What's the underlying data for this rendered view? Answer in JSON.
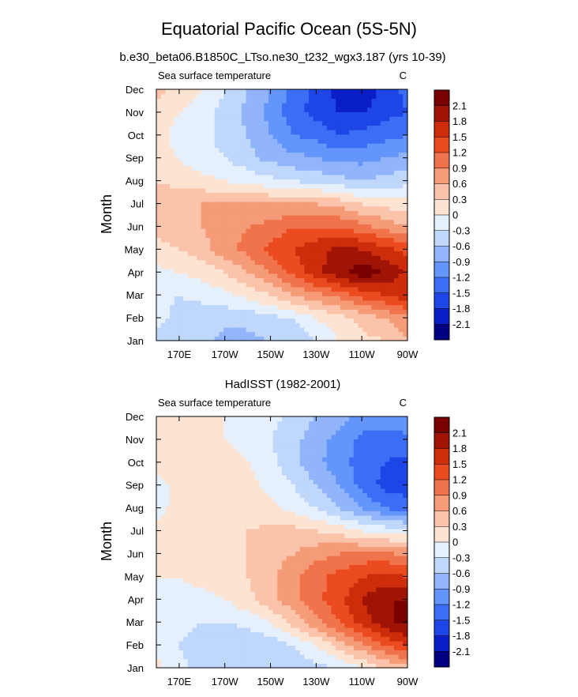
{
  "figure": {
    "title": "Equatorial Pacific Ocean (5S-5N)",
    "palette": [
      "#000080",
      "#0a1ec8",
      "#1e46e6",
      "#3c6ef5",
      "#6495fa",
      "#91b4fa",
      "#bed7fa",
      "#e6f0fc",
      "#fde3d2",
      "#fac3aa",
      "#f59b78",
      "#f0734b",
      "#eb4b1e",
      "#cd2d0a",
      "#a01405",
      "#780000"
    ]
  },
  "chart_data": [
    {
      "type": "heatmap",
      "title": "b.e30_beta06.B1850C_LTso.ne30_t232_wgx3.187 (yrs 10-39)",
      "left_string": "Sea surface temperature",
      "right_string": "C",
      "xlabel": "",
      "ylabel": "Month",
      "x": [
        160,
        170,
        180,
        190,
        200,
        210,
        220,
        230,
        240,
        250,
        260,
        270
      ],
      "xlim": [
        160,
        270
      ],
      "x_ticks": [
        170,
        190,
        210,
        230,
        250,
        270
      ],
      "x_tick_labels": [
        "170E",
        "170W",
        "150W",
        "130W",
        "110W",
        "90W"
      ],
      "y": [
        1,
        2,
        3,
        4,
        5,
        6,
        7,
        8,
        9,
        10,
        11,
        12
      ],
      "ylim": [
        1,
        12
      ],
      "y_tick_labels": [
        "Jan",
        "Feb",
        "Mar",
        "Apr",
        "May",
        "Jun",
        "Jul",
        "Aug",
        "Sep",
        "Oct",
        "Nov",
        "Dec"
      ],
      "contour_levels": [
        -2.1,
        -1.8,
        -1.5,
        -1.2,
        -0.9,
        -0.6,
        -0.3,
        0,
        0.3,
        0.6,
        0.9,
        1.2,
        1.5,
        1.8,
        2.1
      ],
      "colorbar_labels": [
        "2.1",
        "1.8",
        "1.5",
        "1.2",
        "0.9",
        "0.6",
        "0.3",
        "0",
        "-0.3",
        "-0.6",
        "-0.9",
        "-1.2",
        "-1.5",
        "-1.8",
        "-2.1"
      ],
      "z": [
        [
          -0.4,
          -0.5,
          -0.5,
          -0.7,
          -0.7,
          -0.6,
          -0.5,
          -0.3,
          0.0,
          0.2,
          0.3,
          0.6
        ],
        [
          -0.2,
          -0.4,
          -0.5,
          -0.5,
          -0.5,
          -0.4,
          -0.3,
          0.0,
          0.2,
          0.4,
          0.6,
          0.8
        ],
        [
          -0.2,
          -0.3,
          -0.2,
          -0.1,
          0.1,
          0.3,
          0.6,
          0.8,
          1.0,
          1.3,
          1.5,
          1.7
        ],
        [
          -0.1,
          0.0,
          0.1,
          0.3,
          0.6,
          0.9,
          1.3,
          1.7,
          2.0,
          2.3,
          2.1,
          1.7
        ],
        [
          0.2,
          0.3,
          0.5,
          0.8,
          1.0,
          1.3,
          1.5,
          1.7,
          1.9,
          1.8,
          1.6,
          1.4
        ],
        [
          0.4,
          0.5,
          0.6,
          0.7,
          0.9,
          1.0,
          1.2,
          1.2,
          1.2,
          1.0,
          0.8,
          0.6
        ],
        [
          0.5,
          0.5,
          0.6,
          0.6,
          0.6,
          0.6,
          0.6,
          0.6,
          0.5,
          0.3,
          0.2,
          0.1
        ],
        [
          0.3,
          0.2,
          0.1,
          0.0,
          -0.1,
          -0.2,
          -0.3,
          -0.4,
          -0.5,
          -0.6,
          -0.5,
          -0.4
        ],
        [
          0.1,
          0.0,
          -0.2,
          -0.3,
          -0.5,
          -0.7,
          -0.8,
          -0.9,
          -1.0,
          -1.0,
          -0.9,
          -0.8
        ],
        [
          0.1,
          -0.1,
          -0.2,
          -0.4,
          -0.6,
          -0.9,
          -1.2,
          -1.3,
          -1.5,
          -1.4,
          -1.3,
          -1.2
        ],
        [
          0.2,
          0.0,
          -0.2,
          -0.4,
          -0.7,
          -1.0,
          -1.4,
          -1.6,
          -1.8,
          -1.8,
          -1.6,
          -1.5
        ],
        [
          0.4,
          0.2,
          0.0,
          -0.3,
          -0.6,
          -0.9,
          -1.3,
          -1.6,
          -1.9,
          -2.1,
          -1.7,
          -1.4
        ]
      ]
    },
    {
      "type": "heatmap",
      "title": "HadISST (1982-2001)",
      "left_string": "Sea surface temperature",
      "right_string": "C",
      "xlabel": "",
      "ylabel": "Month",
      "x": [
        160,
        170,
        180,
        190,
        200,
        210,
        220,
        230,
        240,
        250,
        260,
        270
      ],
      "xlim": [
        160,
        270
      ],
      "x_ticks": [
        170,
        190,
        210,
        230,
        250,
        270
      ],
      "x_tick_labels": [
        "170E",
        "170W",
        "150W",
        "130W",
        "110W",
        "90W"
      ],
      "y": [
        1,
        2,
        3,
        4,
        5,
        6,
        7,
        8,
        9,
        10,
        11,
        12
      ],
      "ylim": [
        1,
        12
      ],
      "y_tick_labels": [
        "Jan",
        "Feb",
        "Mar",
        "Apr",
        "May",
        "Jun",
        "Jul",
        "Aug",
        "Sep",
        "Oct",
        "Nov",
        "Dec"
      ],
      "contour_levels": [
        -2.1,
        -1.8,
        -1.5,
        -1.2,
        -0.9,
        -0.6,
        -0.3,
        0,
        0.3,
        0.6,
        0.9,
        1.2,
        1.5,
        1.8,
        2.1
      ],
      "colorbar_labels": [
        "2.1",
        "1.8",
        "1.5",
        "1.2",
        "0.9",
        "0.6",
        "0.3",
        "0",
        "-0.3",
        "-0.6",
        "-0.9",
        "-1.2",
        "-1.5",
        "-1.8",
        "-2.1"
      ],
      "z": [
        [
          0.1,
          -0.2,
          -0.4,
          -0.5,
          -0.5,
          -0.5,
          -0.5,
          -0.4,
          -0.3,
          0.0,
          0.3,
          0.5
        ],
        [
          -0.1,
          -0.3,
          -0.5,
          -0.6,
          -0.6,
          -0.5,
          -0.3,
          0.0,
          0.4,
          0.8,
          1.2,
          1.5
        ],
        [
          -0.1,
          -0.2,
          -0.3,
          -0.3,
          -0.2,
          0.0,
          0.4,
          0.8,
          1.2,
          1.6,
          2.0,
          2.2
        ],
        [
          -0.1,
          -0.1,
          -0.1,
          0.0,
          0.2,
          0.5,
          0.8,
          1.1,
          1.4,
          1.8,
          2.1,
          2.1
        ],
        [
          0.0,
          0.0,
          0.1,
          0.2,
          0.3,
          0.5,
          0.8,
          1.1,
          1.3,
          1.5,
          1.6,
          1.5
        ],
        [
          0.1,
          0.1,
          0.1,
          0.2,
          0.3,
          0.5,
          0.6,
          0.8,
          0.9,
          1.0,
          1.0,
          0.8
        ],
        [
          0.1,
          0.1,
          0.2,
          0.3,
          0.3,
          0.4,
          0.4,
          0.3,
          0.2,
          0.0,
          -0.1,
          -0.2
        ],
        [
          -0.1,
          0.1,
          0.1,
          0.2,
          0.1,
          0.1,
          -0.1,
          -0.3,
          -0.6,
          -0.9,
          -1.2,
          -1.3
        ],
        [
          -0.1,
          0.1,
          0.2,
          0.1,
          0.1,
          -0.1,
          -0.3,
          -0.6,
          -0.9,
          -1.3,
          -1.6,
          -1.7
        ],
        [
          0.1,
          0.1,
          0.1,
          0.1,
          0.0,
          -0.2,
          -0.5,
          -0.8,
          -1.1,
          -1.3,
          -1.5,
          -1.6
        ],
        [
          0.1,
          0.1,
          0.1,
          0.0,
          -0.1,
          -0.3,
          -0.5,
          -0.8,
          -1.0,
          -1.3,
          -1.4,
          -1.3
        ],
        [
          0.1,
          0.1,
          0.1,
          0.0,
          -0.1,
          -0.2,
          -0.4,
          -0.6,
          -0.8,
          -1.0,
          -1.0,
          -0.9
        ]
      ]
    }
  ]
}
